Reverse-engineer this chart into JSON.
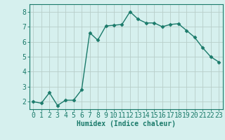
{
  "x": [
    0,
    1,
    2,
    3,
    4,
    5,
    6,
    7,
    8,
    9,
    10,
    11,
    12,
    13,
    14,
    15,
    16,
    17,
    18,
    19,
    20,
    21,
    22,
    23
  ],
  "y": [
    2.0,
    1.9,
    2.6,
    1.75,
    2.1,
    2.1,
    2.8,
    6.6,
    6.1,
    7.05,
    7.1,
    7.15,
    8.0,
    7.5,
    7.25,
    7.25,
    7.0,
    7.15,
    7.2,
    6.75,
    6.3,
    5.6,
    5.0,
    4.65
  ],
  "line_color": "#1a7a6a",
  "marker": "D",
  "marker_size": 2.5,
  "bg_color": "#d6f0ee",
  "grid_color": "#b8ceca",
  "ylabel_ticks": [
    2,
    3,
    4,
    5,
    6,
    7,
    8
  ],
  "xlabel": "Humidex (Indice chaleur)",
  "xlim": [
    -0.5,
    23.5
  ],
  "ylim": [
    1.5,
    8.5
  ],
  "xlabel_fontsize": 7,
  "tick_fontsize": 7,
  "linewidth": 1.0
}
